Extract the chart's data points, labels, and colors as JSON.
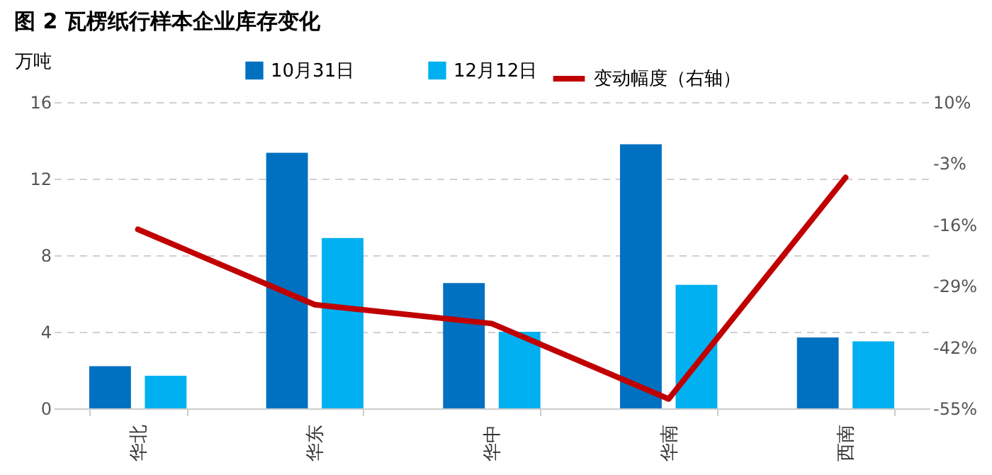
{
  "chart_data": {
    "type": "bar",
    "title": "图 2 瓦楞纸行样本企业库存变化",
    "ylabel": "万吨",
    "categories": [
      "华北",
      "华东",
      "华中",
      "华南",
      "西南"
    ],
    "series": [
      {
        "name": "10月31日",
        "color": "#0070c0",
        "values": [
          2.2,
          13.35,
          6.55,
          13.8,
          3.7
        ]
      },
      {
        "name": "12月12日",
        "color": "#00b0f0",
        "values": [
          1.7,
          8.9,
          4.0,
          6.45,
          3.5
        ]
      },
      {
        "name": "变动幅度（右轴）",
        "type": "line",
        "axis": "y2",
        "color": "#c00000",
        "values": [
          -17,
          -33,
          -37,
          -53,
          -6
        ]
      }
    ],
    "ylim": [
      0,
      16
    ],
    "yticks": [
      0,
      4,
      8,
      12,
      16
    ],
    "y2lim": [
      -55,
      10
    ],
    "y2ticks": [
      {
        "value": -55,
        "label": "-55%"
      },
      {
        "value": -42,
        "label": "-42%"
      },
      {
        "value": -29,
        "label": "-29%"
      },
      {
        "value": -16,
        "label": "-16%"
      },
      {
        "value": -3,
        "label": "-3%"
      },
      {
        "value": 10,
        "label": "10%"
      }
    ],
    "grid": "y",
    "legend": "top"
  }
}
